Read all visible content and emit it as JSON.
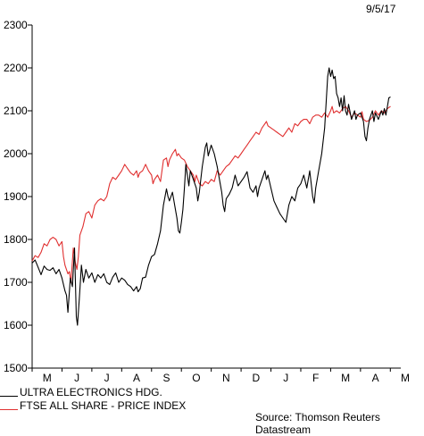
{
  "date_label": "9/5/17",
  "source": "Source: Thomson Reuters Datastream",
  "chart_data": {
    "type": "line",
    "ylim": [
      1500,
      2300
    ],
    "yticks": [
      1500,
      1600,
      1700,
      1800,
      1900,
      2000,
      2100,
      2200,
      2300
    ],
    "x_tick_labels": [
      "M",
      "J",
      "J",
      "A",
      "S",
      "O",
      "N",
      "D",
      "J",
      "F",
      "M",
      "A",
      "M"
    ],
    "x_range": [
      0,
      12.35
    ],
    "grid": false,
    "legend_placement": "bottom-left",
    "series": [
      {
        "name": "ULTRA ELECTRONICS HDG.",
        "color": "#000000",
        "points": [
          [
            0.0,
            1745
          ],
          [
            0.1,
            1752
          ],
          [
            0.2,
            1735
          ],
          [
            0.3,
            1718
          ],
          [
            0.4,
            1738
          ],
          [
            0.5,
            1730
          ],
          [
            0.6,
            1728
          ],
          [
            0.7,
            1734
          ],
          [
            0.8,
            1720
          ],
          [
            0.9,
            1730
          ],
          [
            1.0,
            1710
          ],
          [
            1.1,
            1680
          ],
          [
            1.15,
            1670
          ],
          [
            1.2,
            1630
          ],
          [
            1.28,
            1710
          ],
          [
            1.35,
            1690
          ],
          [
            1.42,
            1780
          ],
          [
            1.48,
            1620
          ],
          [
            1.52,
            1600
          ],
          [
            1.58,
            1660
          ],
          [
            1.65,
            1740
          ],
          [
            1.72,
            1700
          ],
          [
            1.8,
            1730
          ],
          [
            1.9,
            1710
          ],
          [
            2.0,
            1722
          ],
          [
            2.1,
            1700
          ],
          [
            2.2,
            1718
          ],
          [
            2.3,
            1710
          ],
          [
            2.4,
            1720
          ],
          [
            2.5,
            1700
          ],
          [
            2.6,
            1695
          ],
          [
            2.7,
            1712
          ],
          [
            2.8,
            1722
          ],
          [
            2.9,
            1700
          ],
          [
            3.0,
            1710
          ],
          [
            3.1,
            1705
          ],
          [
            3.2,
            1695
          ],
          [
            3.3,
            1690
          ],
          [
            3.4,
            1680
          ],
          [
            3.5,
            1690
          ],
          [
            3.55,
            1678
          ],
          [
            3.62,
            1685
          ],
          [
            3.7,
            1710
          ],
          [
            3.8,
            1712
          ],
          [
            3.9,
            1740
          ],
          [
            4.0,
            1760
          ],
          [
            4.1,
            1765
          ],
          [
            4.2,
            1790
          ],
          [
            4.3,
            1820
          ],
          [
            4.4,
            1880
          ],
          [
            4.5,
            1918
          ],
          [
            4.55,
            1900
          ],
          [
            4.6,
            1890
          ],
          [
            4.7,
            1910
          ],
          [
            4.8,
            1870
          ],
          [
            4.85,
            1850
          ],
          [
            4.9,
            1820
          ],
          [
            4.95,
            1815
          ],
          [
            5.0,
            1840
          ],
          [
            5.05,
            1870
          ],
          [
            5.1,
            1920
          ],
          [
            5.15,
            1975
          ],
          [
            5.2,
            1950
          ],
          [
            5.25,
            1925
          ],
          [
            5.3,
            1960
          ],
          [
            5.4,
            1940
          ],
          [
            5.5,
            1920
          ],
          [
            5.55,
            1890
          ],
          [
            5.6,
            1910
          ],
          [
            5.7,
            1970
          ],
          [
            5.8,
            2015
          ],
          [
            5.85,
            2025
          ],
          [
            5.9,
            1995
          ],
          [
            6.0,
            2020
          ],
          [
            6.1,
            2000
          ],
          [
            6.2,
            1970
          ],
          [
            6.3,
            1930
          ],
          [
            6.35,
            1910
          ],
          [
            6.4,
            1880
          ],
          [
            6.45,
            1865
          ],
          [
            6.5,
            1895
          ],
          [
            6.6,
            1905
          ],
          [
            6.7,
            1920
          ],
          [
            6.8,
            1950
          ],
          [
            6.9,
            1925
          ],
          [
            7.0,
            1935
          ],
          [
            7.1,
            1945
          ],
          [
            7.2,
            1958
          ],
          [
            7.3,
            1920
          ],
          [
            7.4,
            1910
          ],
          [
            7.5,
            1925
          ],
          [
            7.55,
            1900
          ],
          [
            7.6,
            1920
          ],
          [
            7.7,
            1940
          ],
          [
            7.8,
            1960
          ],
          [
            7.85,
            1940
          ],
          [
            7.9,
            1950
          ],
          [
            8.0,
            1920
          ],
          [
            8.1,
            1890
          ],
          [
            8.2,
            1875
          ],
          [
            8.3,
            1860
          ],
          [
            8.4,
            1850
          ],
          [
            8.5,
            1840
          ],
          [
            8.6,
            1880
          ],
          [
            8.7,
            1900
          ],
          [
            8.8,
            1890
          ],
          [
            8.9,
            1920
          ],
          [
            9.0,
            1930
          ],
          [
            9.1,
            1950
          ],
          [
            9.2,
            1920
          ],
          [
            9.3,
            1960
          ],
          [
            9.4,
            1900
          ],
          [
            9.45,
            1885
          ],
          [
            9.5,
            1920
          ],
          [
            9.6,
            1960
          ],
          [
            9.7,
            2000
          ],
          [
            9.8,
            2060
          ],
          [
            9.9,
            2180
          ],
          [
            9.95,
            2200
          ],
          [
            10.0,
            2180
          ],
          [
            10.05,
            2195
          ],
          [
            10.1,
            2175
          ],
          [
            10.15,
            2180
          ],
          [
            10.2,
            2140
          ],
          [
            10.25,
            2130
          ],
          [
            10.3,
            2110
          ],
          [
            10.35,
            2130
          ],
          [
            10.4,
            2100
          ],
          [
            10.45,
            2135
          ],
          [
            10.5,
            2100
          ],
          [
            10.55,
            2090
          ],
          [
            10.6,
            2115
          ],
          [
            10.7,
            2080
          ],
          [
            10.8,
            2100
          ],
          [
            10.85,
            2080
          ],
          [
            10.9,
            2090
          ],
          [
            11.0,
            2095
          ],
          [
            11.1,
            2075
          ],
          [
            11.15,
            2040
          ],
          [
            11.2,
            2030
          ],
          [
            11.25,
            2060
          ],
          [
            11.3,
            2080
          ],
          [
            11.4,
            2100
          ],
          [
            11.45,
            2075
          ],
          [
            11.5,
            2095
          ],
          [
            11.6,
            2080
          ],
          [
            11.7,
            2100
          ],
          [
            11.75,
            2090
          ],
          [
            11.8,
            2105
          ],
          [
            11.85,
            2090
          ],
          [
            11.9,
            2110
          ],
          [
            11.95,
            2130
          ],
          [
            12.0,
            2132
          ]
        ]
      },
      {
        "name": "FTSE ALL SHARE - PRICE INDEX",
        "color": "#e03030",
        "points": [
          [
            0.0,
            1750
          ],
          [
            0.1,
            1762
          ],
          [
            0.2,
            1758
          ],
          [
            0.3,
            1770
          ],
          [
            0.4,
            1790
          ],
          [
            0.5,
            1785
          ],
          [
            0.6,
            1800
          ],
          [
            0.7,
            1805
          ],
          [
            0.8,
            1800
          ],
          [
            0.9,
            1785
          ],
          [
            1.0,
            1795
          ],
          [
            1.05,
            1760
          ],
          [
            1.1,
            1740
          ],
          [
            1.2,
            1720
          ],
          [
            1.25,
            1725
          ],
          [
            1.3,
            1700
          ],
          [
            1.38,
            1780
          ],
          [
            1.45,
            1745
          ],
          [
            1.5,
            1730
          ],
          [
            1.55,
            1760
          ],
          [
            1.6,
            1810
          ],
          [
            1.7,
            1830
          ],
          [
            1.8,
            1860
          ],
          [
            1.9,
            1865
          ],
          [
            2.0,
            1850
          ],
          [
            2.1,
            1880
          ],
          [
            2.2,
            1890
          ],
          [
            2.3,
            1895
          ],
          [
            2.4,
            1890
          ],
          [
            2.5,
            1900
          ],
          [
            2.6,
            1930
          ],
          [
            2.7,
            1945
          ],
          [
            2.8,
            1940
          ],
          [
            2.9,
            1950
          ],
          [
            3.0,
            1960
          ],
          [
            3.1,
            1975
          ],
          [
            3.2,
            1965
          ],
          [
            3.3,
            1955
          ],
          [
            3.4,
            1950
          ],
          [
            3.5,
            1960
          ],
          [
            3.55,
            1945
          ],
          [
            3.6,
            1955
          ],
          [
            3.7,
            1960
          ],
          [
            3.8,
            1975
          ],
          [
            3.9,
            1960
          ],
          [
            4.0,
            1950
          ],
          [
            4.05,
            1930
          ],
          [
            4.1,
            1940
          ],
          [
            4.2,
            1950
          ],
          [
            4.3,
            1935
          ],
          [
            4.4,
            1985
          ],
          [
            4.5,
            1990
          ],
          [
            4.55,
            1970
          ],
          [
            4.6,
            1985
          ],
          [
            4.7,
            2000
          ],
          [
            4.8,
            2010
          ],
          [
            4.85,
            1995
          ],
          [
            4.9,
            2000
          ],
          [
            5.0,
            1990
          ],
          [
            5.1,
            1985
          ],
          [
            5.2,
            1970
          ],
          [
            5.3,
            1960
          ],
          [
            5.4,
            1950
          ],
          [
            5.45,
            1935
          ],
          [
            5.5,
            1950
          ],
          [
            5.6,
            1930
          ],
          [
            5.7,
            1925
          ],
          [
            5.8,
            1935
          ],
          [
            5.9,
            1930
          ],
          [
            6.0,
            1940
          ],
          [
            6.1,
            1935
          ],
          [
            6.2,
            1960
          ],
          [
            6.3,
            1950
          ],
          [
            6.4,
            1960
          ],
          [
            6.5,
            1970
          ],
          [
            6.6,
            1975
          ],
          [
            6.7,
            1985
          ],
          [
            6.8,
            1995
          ],
          [
            6.9,
            1990
          ],
          [
            7.0,
            2000
          ],
          [
            7.1,
            2010
          ],
          [
            7.2,
            2020
          ],
          [
            7.3,
            2030
          ],
          [
            7.4,
            2040
          ],
          [
            7.5,
            2050
          ],
          [
            7.6,
            2045
          ],
          [
            7.7,
            2060
          ],
          [
            7.8,
            2070
          ],
          [
            7.85,
            2075
          ],
          [
            7.9,
            2065
          ],
          [
            8.0,
            2060
          ],
          [
            8.1,
            2055
          ],
          [
            8.2,
            2050
          ],
          [
            8.3,
            2045
          ],
          [
            8.4,
            2040
          ],
          [
            8.5,
            2050
          ],
          [
            8.6,
            2060
          ],
          [
            8.7,
            2050
          ],
          [
            8.8,
            2070
          ],
          [
            8.9,
            2065
          ],
          [
            9.0,
            2075
          ],
          [
            9.1,
            2080
          ],
          [
            9.2,
            2080
          ],
          [
            9.3,
            2070
          ],
          [
            9.4,
            2085
          ],
          [
            9.5,
            2090
          ],
          [
            9.6,
            2090
          ],
          [
            9.7,
            2085
          ],
          [
            9.8,
            2095
          ],
          [
            9.9,
            2085
          ],
          [
            10.0,
            2100
          ],
          [
            10.05,
            2110
          ],
          [
            10.1,
            2095
          ],
          [
            10.2,
            2100
          ],
          [
            10.3,
            2095
          ],
          [
            10.4,
            2105
          ],
          [
            10.5,
            2110
          ],
          [
            10.6,
            2100
          ],
          [
            10.7,
            2085
          ],
          [
            10.8,
            2095
          ],
          [
            10.9,
            2090
          ],
          [
            11.0,
            2085
          ],
          [
            11.05,
            2098
          ],
          [
            11.1,
            2080
          ],
          [
            11.2,
            2075
          ],
          [
            11.3,
            2078
          ],
          [
            11.4,
            2085
          ],
          [
            11.5,
            2100
          ],
          [
            11.6,
            2090
          ],
          [
            11.7,
            2100
          ],
          [
            11.8,
            2095
          ],
          [
            11.9,
            2105
          ],
          [
            12.0,
            2110
          ]
        ]
      }
    ]
  }
}
